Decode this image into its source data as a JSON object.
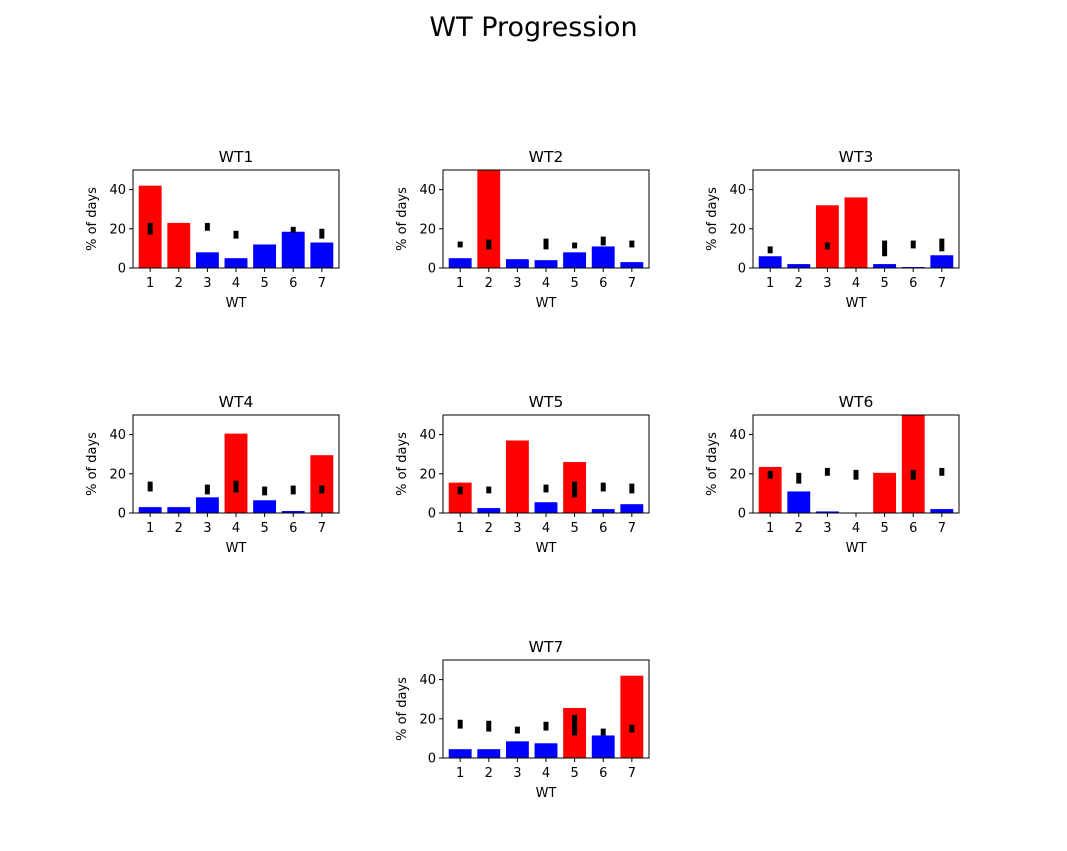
{
  "page": {
    "title": "WT Progression"
  },
  "colors": {
    "high": "#ff0000",
    "low": "#0000ff",
    "range": "#000000"
  },
  "chart_data": [
    {
      "type": "bar",
      "title": "WT1",
      "xlabel": "WT",
      "ylabel": "% of days",
      "ylim": [
        0,
        50
      ],
      "yticks": [
        0,
        20,
        40
      ],
      "categories": [
        "1",
        "2",
        "3",
        "4",
        "5",
        "6",
        "7"
      ],
      "values": [
        42,
        23,
        8,
        5,
        12,
        18.5,
        13
      ],
      "colors": [
        "red",
        "red",
        "blue",
        "blue",
        "blue",
        "blue",
        "blue"
      ],
      "ranges": [
        [
          17,
          23
        ],
        [
          0,
          0
        ],
        [
          19,
          23
        ],
        [
          15,
          19
        ],
        [
          0,
          0
        ],
        [
          18,
          21
        ],
        [
          15,
          20
        ]
      ]
    },
    {
      "type": "bar",
      "title": "WT2",
      "xlabel": "WT",
      "ylabel": "% of days",
      "ylim": [
        0,
        50
      ],
      "yticks": [
        0,
        20,
        40
      ],
      "categories": [
        "1",
        "2",
        "3",
        "4",
        "5",
        "6",
        "7"
      ],
      "values": [
        5,
        50,
        4.5,
        4,
        8,
        11,
        3
      ],
      "colors": [
        "blue",
        "red",
        "blue",
        "blue",
        "blue",
        "blue",
        "blue"
      ],
      "ranges": [
        [
          10.5,
          13.5
        ],
        [
          9.5,
          14.5
        ],
        [
          0,
          0
        ],
        [
          9.5,
          15
        ],
        [
          10,
          13
        ],
        [
          11.5,
          16
        ],
        [
          10.5,
          14
        ]
      ]
    },
    {
      "type": "bar",
      "title": "WT3",
      "xlabel": "WT",
      "ylabel": "% of days",
      "ylim": [
        0,
        50
      ],
      "yticks": [
        0,
        20,
        40
      ],
      "categories": [
        "1",
        "2",
        "3",
        "4",
        "5",
        "6",
        "7"
      ],
      "values": [
        6,
        2,
        32,
        36,
        2,
        0.5,
        6.5
      ],
      "colors": [
        "blue",
        "blue",
        "red",
        "red",
        "blue",
        "blue",
        "blue"
      ],
      "ranges": [
        [
          7.5,
          11
        ],
        [
          0,
          0
        ],
        [
          9.5,
          13
        ],
        [
          0,
          0
        ],
        [
          6,
          14
        ],
        [
          10,
          14
        ],
        [
          8.5,
          15
        ]
      ]
    },
    {
      "type": "bar",
      "title": "WT4",
      "xlabel": "WT",
      "ylabel": "% of days",
      "ylim": [
        0,
        50
      ],
      "yticks": [
        0,
        20,
        40
      ],
      "categories": [
        "1",
        "2",
        "3",
        "4",
        "5",
        "6",
        "7"
      ],
      "values": [
        3,
        3,
        8,
        40.5,
        6.5,
        1,
        29.5
      ],
      "colors": [
        "blue",
        "blue",
        "blue",
        "red",
        "blue",
        "blue",
        "red"
      ],
      "ranges": [
        [
          11,
          16
        ],
        [
          0,
          0
        ],
        [
          9.5,
          14.5
        ],
        [
          10.5,
          16.5
        ],
        [
          9,
          13.5
        ],
        [
          9.5,
          14
        ],
        [
          10,
          14
        ]
      ]
    },
    {
      "type": "bar",
      "title": "WT5",
      "xlabel": "WT",
      "ylabel": "% of days",
      "ylim": [
        0,
        50
      ],
      "yticks": [
        0,
        20,
        40
      ],
      "categories": [
        "1",
        "2",
        "3",
        "4",
        "5",
        "6",
        "7"
      ],
      "values": [
        15.5,
        2.5,
        37,
        5.5,
        26,
        2,
        4.5
      ],
      "colors": [
        "red",
        "blue",
        "red",
        "blue",
        "red",
        "blue",
        "blue"
      ],
      "ranges": [
        [
          9.5,
          13.5
        ],
        [
          10,
          13.5
        ],
        [
          0,
          0
        ],
        [
          10.5,
          14.5
        ],
        [
          8,
          16
        ],
        [
          11,
          15.5
        ],
        [
          10,
          15
        ]
      ]
    },
    {
      "type": "bar",
      "title": "WT6",
      "xlabel": "WT",
      "ylabel": "% of days",
      "ylim": [
        0,
        50
      ],
      "yticks": [
        0,
        20,
        40
      ],
      "categories": [
        "1",
        "2",
        "3",
        "4",
        "5",
        "6",
        "7"
      ],
      "values": [
        23.5,
        11,
        0.8,
        0,
        20.5,
        50,
        2
      ],
      "colors": [
        "red",
        "blue",
        "blue",
        "blue",
        "red",
        "red",
        "blue"
      ],
      "ranges": [
        [
          17.5,
          21.5
        ],
        [
          15,
          20.5
        ],
        [
          19,
          23
        ],
        [
          17,
          22
        ],
        [
          0,
          0
        ],
        [
          17,
          22
        ],
        [
          19,
          23
        ]
      ]
    },
    {
      "type": "bar",
      "title": "WT7",
      "xlabel": "WT",
      "ylabel": "% of days",
      "ylim": [
        0,
        50
      ],
      "yticks": [
        0,
        20,
        40
      ],
      "categories": [
        "1",
        "2",
        "3",
        "4",
        "5",
        "6",
        "7"
      ],
      "values": [
        4.5,
        4.5,
        8.5,
        7.5,
        25.5,
        11.5,
        42
      ],
      "colors": [
        "blue",
        "blue",
        "blue",
        "blue",
        "red",
        "blue",
        "red"
      ],
      "ranges": [
        [
          15,
          19.5
        ],
        [
          13.5,
          19
        ],
        [
          12.5,
          16
        ],
        [
          14,
          18.5
        ],
        [
          11.5,
          22
        ],
        [
          11.5,
          15
        ],
        [
          13,
          17
        ]
      ]
    }
  ]
}
